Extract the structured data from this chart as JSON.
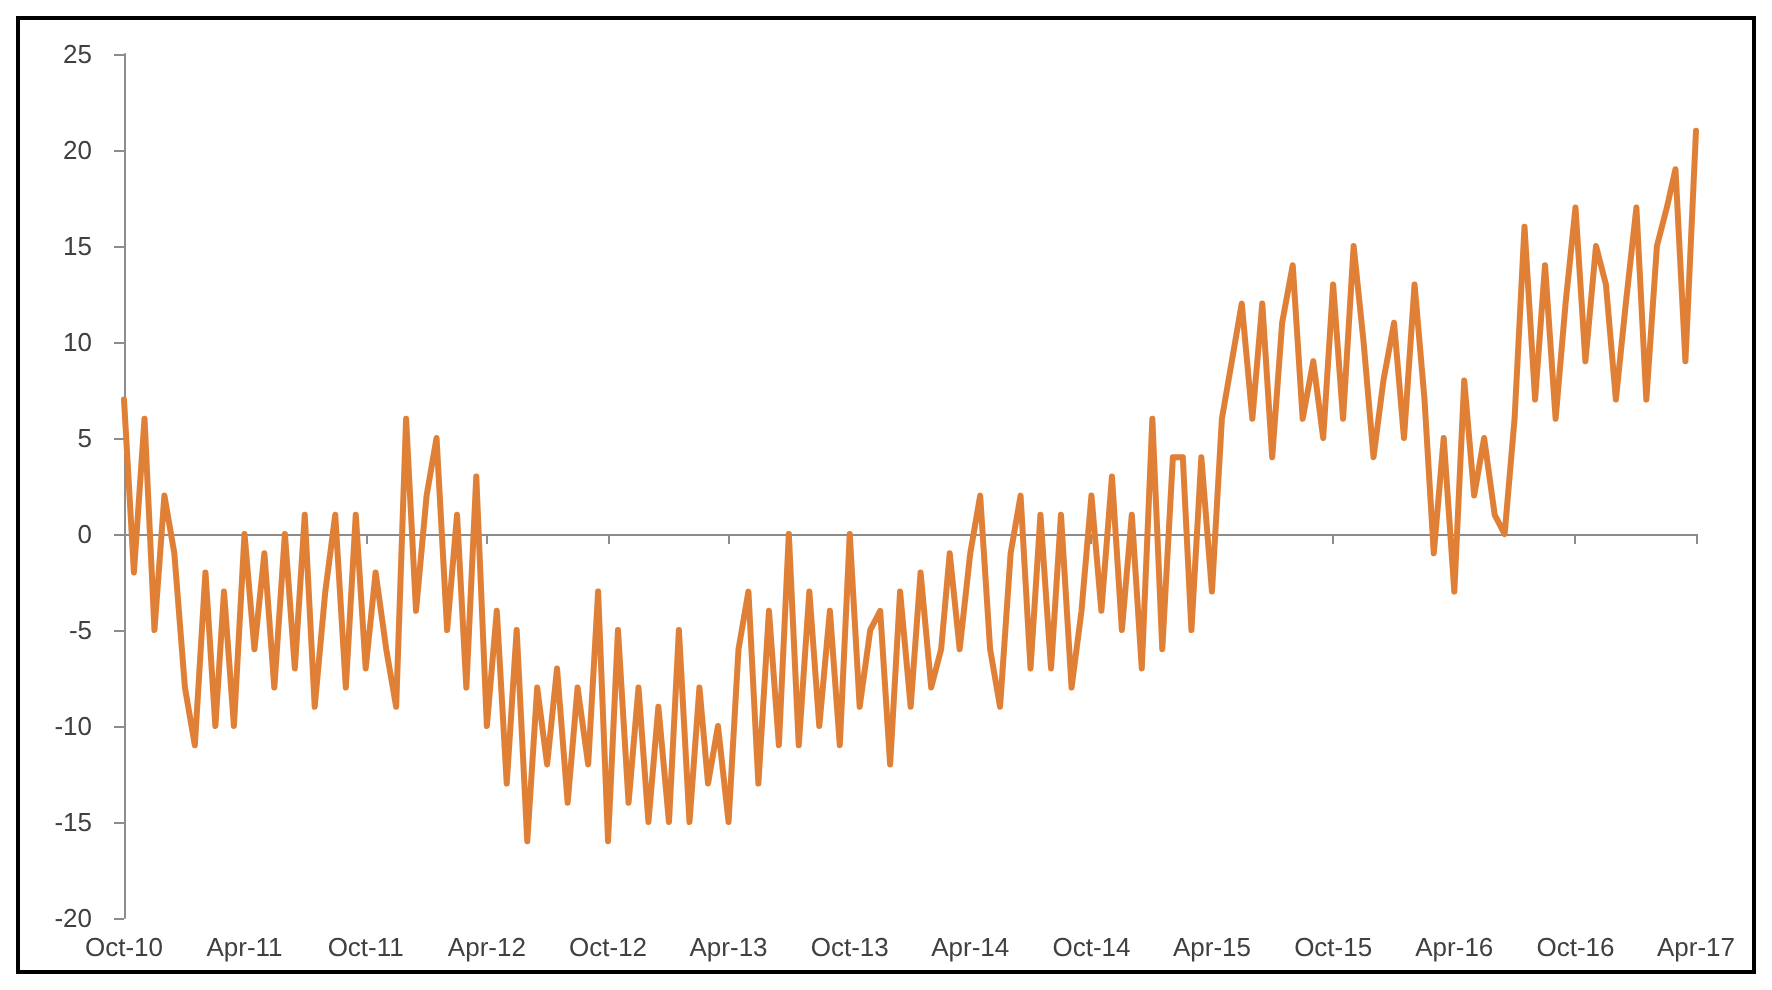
{
  "chart_data": {
    "type": "line",
    "x": [
      "2010-10-01",
      "2010-10-16",
      "2010-11-01",
      "2010-11-16",
      "2010-12-01",
      "2010-12-16",
      "2011-01-01",
      "2011-01-16",
      "2011-02-01",
      "2011-02-16",
      "2011-03-01",
      "2011-03-16",
      "2011-04-01",
      "2011-04-16",
      "2011-05-01",
      "2011-05-16",
      "2011-06-01",
      "2011-06-16",
      "2011-07-01",
      "2011-07-16",
      "2011-08-01",
      "2011-08-16",
      "2011-09-01",
      "2011-09-16",
      "2011-10-01",
      "2011-10-16",
      "2011-11-01",
      "2011-11-16",
      "2011-12-01",
      "2011-12-16",
      "2012-01-01",
      "2012-01-16",
      "2012-02-01",
      "2012-02-16",
      "2012-03-01",
      "2012-03-16",
      "2012-04-01",
      "2012-04-16",
      "2012-05-01",
      "2012-05-16",
      "2012-06-01",
      "2012-06-16",
      "2012-07-01",
      "2012-07-16",
      "2012-08-01",
      "2012-08-16",
      "2012-09-01",
      "2012-09-16",
      "2012-10-01",
      "2012-10-16",
      "2012-11-01",
      "2012-11-16",
      "2012-12-01",
      "2012-12-16",
      "2013-01-01",
      "2013-01-16",
      "2013-02-01",
      "2013-02-16",
      "2013-03-01",
      "2013-03-16",
      "2013-04-01",
      "2013-04-16",
      "2013-05-01",
      "2013-05-16",
      "2013-06-01",
      "2013-06-16",
      "2013-07-01",
      "2013-07-16",
      "2013-08-01",
      "2013-08-16",
      "2013-09-01",
      "2013-09-16",
      "2013-10-01",
      "2013-10-16",
      "2013-11-01",
      "2013-11-16",
      "2013-12-01",
      "2013-12-16",
      "2014-01-01",
      "2014-01-16",
      "2014-02-01",
      "2014-02-16",
      "2014-03-01",
      "2014-03-16",
      "2014-04-01",
      "2014-04-16",
      "2014-05-01",
      "2014-05-16",
      "2014-06-01",
      "2014-06-16",
      "2014-07-01",
      "2014-07-16",
      "2014-08-01",
      "2014-08-16",
      "2014-09-01",
      "2014-09-16",
      "2014-10-01",
      "2014-10-16",
      "2014-11-01",
      "2014-11-16",
      "2014-12-01",
      "2014-12-16",
      "2015-01-01",
      "2015-01-16",
      "2015-02-01",
      "2015-02-16",
      "2015-03-01",
      "2015-03-16",
      "2015-04-01",
      "2015-04-16",
      "2015-05-01",
      "2015-05-16",
      "2015-06-01",
      "2015-06-16",
      "2015-07-01",
      "2015-07-16",
      "2015-08-01",
      "2015-08-16",
      "2015-09-01",
      "2015-09-16",
      "2015-10-01",
      "2015-10-16",
      "2015-11-01",
      "2015-11-16",
      "2015-12-01",
      "2015-12-16",
      "2016-01-01",
      "2016-01-16",
      "2016-02-01",
      "2016-02-16",
      "2016-03-01",
      "2016-03-16",
      "2016-04-01",
      "2016-04-16",
      "2016-05-01",
      "2016-05-16",
      "2016-06-01",
      "2016-06-16",
      "2016-07-01",
      "2016-07-16",
      "2016-08-01",
      "2016-08-16",
      "2016-09-01",
      "2016-09-16",
      "2016-10-01",
      "2016-10-16",
      "2016-11-01",
      "2016-11-16",
      "2016-12-01",
      "2016-12-16",
      "2017-01-01",
      "2017-01-16",
      "2017-02-01",
      "2017-02-16",
      "2017-03-01",
      "2017-03-16",
      "2017-04-01"
    ],
    "series": [
      {
        "color": "#e07f36",
        "values": [
          7,
          -2,
          6,
          -5,
          2,
          -1,
          -8,
          -11,
          -2,
          -10,
          -3,
          -10,
          0,
          -6,
          -1,
          -8,
          0,
          -7,
          1,
          -9,
          -3,
          1,
          -8,
          1,
          -7,
          -2,
          -6,
          -9,
          6,
          -4,
          2,
          5,
          -5,
          1,
          -8,
          3,
          -10,
          -4,
          -13,
          -5,
          -16,
          -8,
          -12,
          -7,
          -14,
          -8,
          -12,
          -3,
          -16,
          -5,
          -14,
          -8,
          -15,
          -9,
          -15,
          -5,
          -15,
          -8,
          -13,
          -10,
          -15,
          -6,
          -3,
          -13,
          -4,
          -11,
          0,
          -11,
          -3,
          -10,
          -4,
          -11,
          0,
          -9,
          -5,
          -4,
          -12,
          -3,
          -9,
          -2,
          -8,
          -6,
          -1,
          -6,
          -1,
          2,
          -6,
          -9,
          -1,
          2,
          -7,
          1,
          -7,
          1,
          -8,
          -4,
          2,
          -4,
          3,
          -5,
          1,
          -7,
          6,
          -6,
          4,
          4,
          -5,
          4,
          -3,
          6,
          9,
          12,
          6,
          12,
          4,
          11,
          14,
          6,
          9,
          5,
          13,
          6,
          15,
          10,
          4,
          8,
          11,
          5,
          13,
          7,
          -1,
          5,
          -3,
          8,
          2,
          5,
          1,
          0,
          6,
          16,
          7,
          14,
          6,
          12,
          17,
          9,
          15,
          13,
          7,
          12,
          17,
          7,
          15,
          17,
          19,
          9,
          21
        ]
      }
    ],
    "xlim": [
      "2010-10",
      "2017-04"
    ],
    "xticks": [
      {
        "value": "2010-10",
        "label": "Oct-10"
      },
      {
        "value": "2011-04",
        "label": "Apr-11"
      },
      {
        "value": "2011-10",
        "label": "Oct-11"
      },
      {
        "value": "2012-04",
        "label": "Apr-12"
      },
      {
        "value": "2012-10",
        "label": "Oct-12"
      },
      {
        "value": "2013-04",
        "label": "Apr-13"
      },
      {
        "value": "2013-10",
        "label": "Oct-13"
      },
      {
        "value": "2014-04",
        "label": "Apr-14"
      },
      {
        "value": "2014-10",
        "label": "Oct-14"
      },
      {
        "value": "2015-04",
        "label": "Apr-15"
      },
      {
        "value": "2015-10",
        "label": "Oct-15"
      },
      {
        "value": "2016-04",
        "label": "Apr-16"
      },
      {
        "value": "2016-10",
        "label": "Oct-16"
      },
      {
        "value": "2017-04",
        "label": "Apr-17"
      }
    ],
    "ylim": [
      -20,
      25
    ],
    "yticks": [
      -20,
      -15,
      -10,
      -5,
      0,
      5,
      10,
      15,
      20,
      25
    ],
    "marker": "none",
    "line_style": "solid"
  }
}
